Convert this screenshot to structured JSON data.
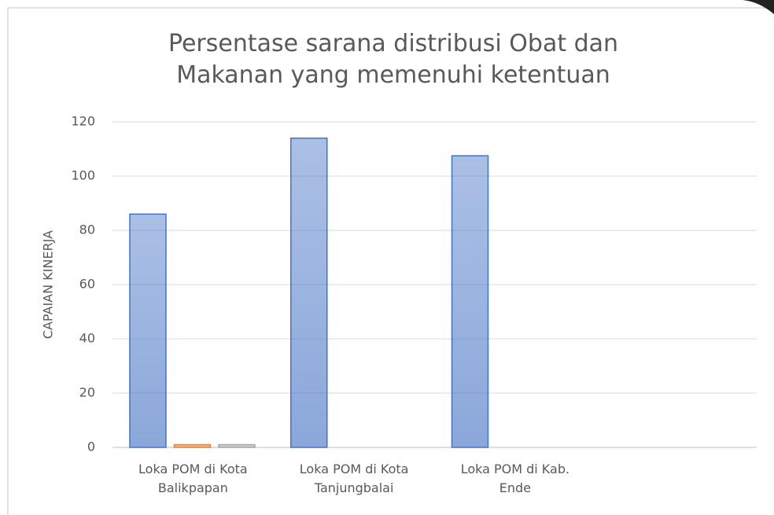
{
  "chart_data": {
    "type": "bar",
    "title": "Persentase sarana distribusi Obat dan Makanan yang memenuhi ketentuan",
    "ylabel": "CAPAIAN KINERJA",
    "categories": [
      "Loka POM di Kota Balikpapan",
      "Loka POM di Kota Tanjungbalai",
      "Loka POM di Kab. Ende",
      null
    ],
    "series": [
      {
        "color": "#4472c4",
        "values": [
          86,
          114,
          107.5,
          null
        ]
      },
      {
        "color": "#ed7d31",
        "values": [
          1,
          null,
          null,
          null
        ]
      },
      {
        "color": "#a5a5a5",
        "values": [
          1,
          null,
          null,
          null
        ]
      }
    ],
    "ylim": [
      0,
      120
    ],
    "yticks": [
      0,
      20,
      40,
      60,
      80,
      100,
      120
    ],
    "grid": true
  }
}
